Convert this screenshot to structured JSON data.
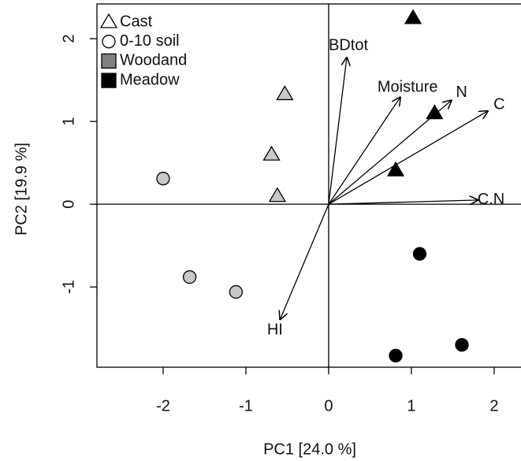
{
  "chart_data": {
    "type": "scatter",
    "xlabel": "PC1 [24.0 %]",
    "ylabel": "PC2 [19.9 %]",
    "xlim": [
      -2.8,
      2.41
    ],
    "ylim": [
      -1.97,
      2.42
    ],
    "xticks": [
      -2,
      -1,
      0,
      1,
      2
    ],
    "yticks": [
      -1,
      0,
      1,
      2
    ],
    "series": [
      {
        "shape": "triangle",
        "color": "#c8c8c8",
        "x": [
          -0.53,
          -0.69,
          -0.62
        ],
        "y": [
          1.33,
          0.6,
          0.1
        ]
      },
      {
        "shape": "triangle",
        "color": "#000000",
        "x": [
          1.02,
          1.28,
          0.81
        ],
        "y": [
          2.25,
          1.1,
          0.41
        ]
      },
      {
        "shape": "circle",
        "color": "#c8c8c8",
        "x": [
          -2.0,
          -1.68,
          -1.12
        ],
        "y": [
          0.31,
          -0.88,
          -1.06
        ]
      },
      {
        "shape": "circle",
        "color": "#000000",
        "x": [
          1.1,
          1.61,
          0.81
        ],
        "y": [
          -0.6,
          -1.7,
          -1.83
        ]
      }
    ],
    "loadings": [
      {
        "label": "BDtot",
        "x": 0.22,
        "y": 1.78
      },
      {
        "label": "Moisture",
        "x": 0.87,
        "y": 1.3
      },
      {
        "label": "N",
        "x": 1.49,
        "y": 1.26
      },
      {
        "label": "C",
        "x": 1.93,
        "y": 1.13
      },
      {
        "label": "C.N",
        "x": 1.81,
        "y": 0.05
      },
      {
        "label": "HI",
        "x": -0.59,
        "y": -1.4
      }
    ],
    "legend": [
      {
        "label": "Cast",
        "shape": "triangle",
        "color": "none"
      },
      {
        "label": "0-10 soil",
        "shape": "circle",
        "color": "none"
      },
      {
        "label": "Woodand",
        "shape": "square",
        "color": "#808080"
      },
      {
        "label": "Meadow",
        "shape": "square",
        "color": "#000000"
      }
    ]
  }
}
